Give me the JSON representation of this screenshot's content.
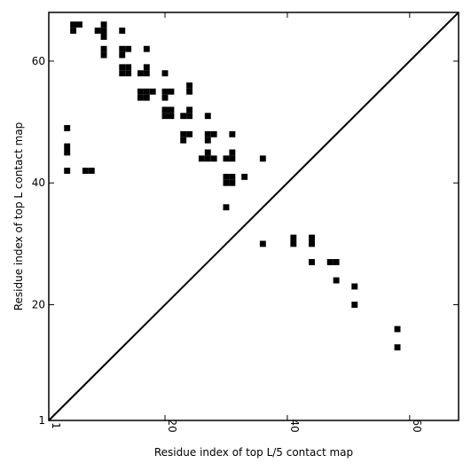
{
  "chart_data": {
    "type": "heatmap",
    "title": "",
    "xlabel": "Residue index of top L/5 contact map",
    "ylabel": "Residue index of top L contact map",
    "xlim": [
      1,
      68
    ],
    "ylim": [
      1,
      68
    ],
    "xticks": [
      1,
      20,
      40,
      60
    ],
    "yticks": [
      1,
      20,
      40,
      60
    ],
    "xtick_labels": [
      "1",
      "20",
      "40",
      "60"
    ],
    "ytick_labels": [
      "1",
      "20",
      "40",
      "60"
    ],
    "diagonal": true,
    "cell_color": "#000000",
    "upper_triangle_contacts": [
      [
        36,
        30
      ],
      [
        41,
        30
      ],
      [
        41,
        31
      ],
      [
        44,
        30
      ],
      [
        44,
        31
      ],
      [
        44,
        27
      ],
      [
        47,
        27
      ],
      [
        48,
        27
      ],
      [
        48,
        24
      ],
      [
        51,
        23
      ],
      [
        51,
        20
      ],
      [
        58,
        16
      ],
      [
        58,
        13
      ]
    ],
    "lower_triangle_contacts": [
      [
        5,
        66
      ],
      [
        6,
        66
      ],
      [
        5,
        65
      ],
      [
        9,
        65
      ],
      [
        10,
        66
      ],
      [
        10,
        65
      ],
      [
        10,
        64
      ],
      [
        13,
        65
      ],
      [
        10,
        62
      ],
      [
        10,
        61
      ],
      [
        13,
        62
      ],
      [
        14,
        62
      ],
      [
        13,
        61
      ],
      [
        17,
        62
      ],
      [
        13,
        59
      ],
      [
        14,
        59
      ],
      [
        13,
        58
      ],
      [
        14,
        58
      ],
      [
        17,
        59
      ],
      [
        16,
        58
      ],
      [
        17,
        58
      ],
      [
        20,
        58
      ],
      [
        16,
        55
      ],
      [
        17,
        55
      ],
      [
        18,
        55
      ],
      [
        16,
        54
      ],
      [
        17,
        54
      ],
      [
        20,
        55
      ],
      [
        21,
        55
      ],
      [
        20,
        54
      ],
      [
        24,
        56
      ],
      [
        24,
        55
      ],
      [
        20,
        52
      ],
      [
        21,
        52
      ],
      [
        20,
        51
      ],
      [
        21,
        51
      ],
      [
        24,
        52
      ],
      [
        23,
        51
      ],
      [
        24,
        51
      ],
      [
        27,
        51
      ],
      [
        4,
        49
      ],
      [
        23,
        48
      ],
      [
        24,
        48
      ],
      [
        23,
        47
      ],
      [
        27,
        48
      ],
      [
        28,
        48
      ],
      [
        27,
        47
      ],
      [
        31,
        48
      ],
      [
        4,
        46
      ],
      [
        4,
        45
      ],
      [
        27,
        45
      ],
      [
        31,
        45
      ],
      [
        26,
        44
      ],
      [
        27,
        44
      ],
      [
        28,
        44
      ],
      [
        30,
        44
      ],
      [
        31,
        44
      ],
      [
        36,
        44
      ],
      [
        7,
        42
      ],
      [
        8,
        42
      ],
      [
        4,
        42
      ],
      [
        33,
        41
      ],
      [
        30,
        41
      ],
      [
        31,
        41
      ],
      [
        30,
        40
      ],
      [
        31,
        40
      ],
      [
        30,
        36
      ]
    ]
  }
}
